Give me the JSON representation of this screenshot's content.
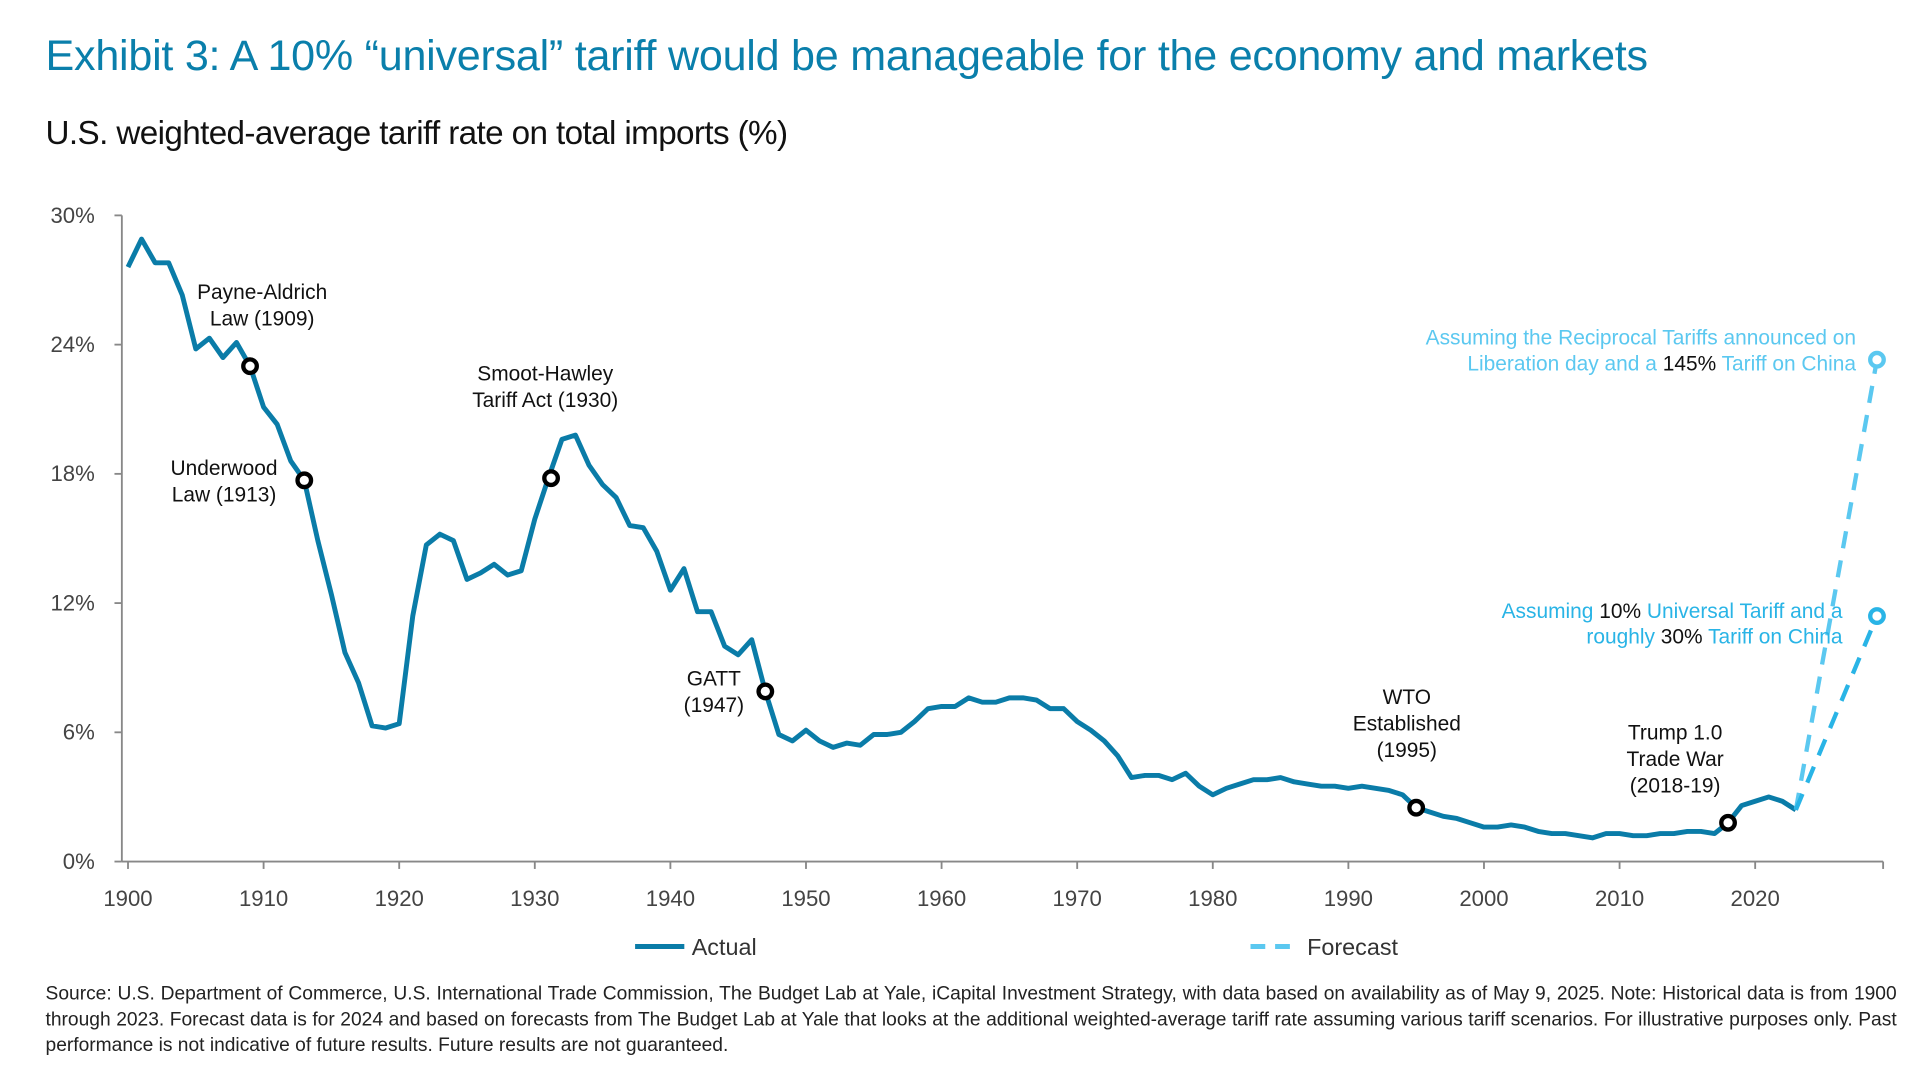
{
  "header": {
    "title": "Exhibit 3: A 10% “universal” tariff would be manageable for the economy and markets",
    "subtitle": "U.S. weighted-average tariff rate on total imports (%)"
  },
  "chart_data": {
    "type": "line",
    "title": "Exhibit 3: A 10% “universal” tariff would be manageable for the economy and markets",
    "ylabel": "U.S. weighted-average tariff rate on total imports (%)",
    "xlabel": "",
    "ylim": [
      0,
      30
    ],
    "y_ticks": [
      "0%",
      "6%",
      "12%",
      "18%",
      "24%",
      "30%"
    ],
    "y_tick_values": [
      0,
      6,
      12,
      18,
      24,
      30
    ],
    "x_ticks": [
      "1900",
      "1910",
      "1920",
      "1930",
      "1940",
      "1950",
      "1960",
      "1970",
      "1980",
      "1990",
      "2000",
      "2010",
      "2020"
    ],
    "grid": false,
    "legend_placement": "bottom",
    "colors": {
      "actual": "#0a7ca8",
      "forecast_high": "#5bc8f0",
      "forecast_low": "#29b4e6",
      "title": "#0a7fab",
      "markers": "#000000"
    },
    "series": [
      {
        "name": "Actual",
        "style": "solid",
        "x": [
          1900,
          1901,
          1902,
          1903,
          1904,
          1905,
          1906,
          1907,
          1908,
          1909,
          1910,
          1911,
          1912,
          1913,
          1914,
          1915,
          1916,
          1917,
          1918,
          1919,
          1920,
          1921,
          1922,
          1923,
          1924,
          1925,
          1926,
          1927,
          1928,
          1929,
          1930,
          1931,
          1932,
          1933,
          1934,
          1935,
          1936,
          1937,
          1938,
          1939,
          1940,
          1941,
          1942,
          1943,
          1944,
          1945,
          1946,
          1947,
          1948,
          1949,
          1950,
          1951,
          1952,
          1953,
          1954,
          1955,
          1956,
          1957,
          1958,
          1959,
          1960,
          1961,
          1962,
          1963,
          1964,
          1965,
          1966,
          1967,
          1968,
          1969,
          1970,
          1971,
          1972,
          1973,
          1974,
          1975,
          1976,
          1977,
          1978,
          1979,
          1980,
          1981,
          1982,
          1983,
          1984,
          1985,
          1986,
          1987,
          1988,
          1989,
          1990,
          1991,
          1992,
          1993,
          1994,
          1995,
          1996,
          1997,
          1998,
          1999,
          2000,
          2001,
          2002,
          2003,
          2004,
          2005,
          2006,
          2007,
          2008,
          2009,
          2010,
          2011,
          2012,
          2013,
          2014,
          2015,
          2016,
          2017,
          2018,
          2019,
          2020,
          2021,
          2022,
          2023
        ],
        "values": [
          27.6,
          28.9,
          27.8,
          27.8,
          26.3,
          23.8,
          24.3,
          23.4,
          24.1,
          23.0,
          21.1,
          20.3,
          18.6,
          17.7,
          14.9,
          12.4,
          9.7,
          8.3,
          6.3,
          6.2,
          6.4,
          11.4,
          14.7,
          15.2,
          14.9,
          13.1,
          13.4,
          13.8,
          13.3,
          13.5,
          15.9,
          17.8,
          19.6,
          19.8,
          18.4,
          17.5,
          16.9,
          15.6,
          15.5,
          14.4,
          12.6,
          13.6,
          11.6,
          11.6,
          10.0,
          9.6,
          10.3,
          7.9,
          5.9,
          5.6,
          6.1,
          5.6,
          5.3,
          5.5,
          5.4,
          5.9,
          5.9,
          6.0,
          6.5,
          7.1,
          7.2,
          7.2,
          7.6,
          7.4,
          7.4,
          7.6,
          7.6,
          7.5,
          7.1,
          7.1,
          6.5,
          6.1,
          5.6,
          4.9,
          3.9,
          4.0,
          4.0,
          3.8,
          4.1,
          3.5,
          3.1,
          3.4,
          3.6,
          3.8,
          3.8,
          3.9,
          3.7,
          3.6,
          3.5,
          3.5,
          3.4,
          3.5,
          3.4,
          3.3,
          3.1,
          2.5,
          2.3,
          2.1,
          2.0,
          1.8,
          1.6,
          1.6,
          1.7,
          1.6,
          1.4,
          1.3,
          1.3,
          1.2,
          1.1,
          1.3,
          1.3,
          1.2,
          1.2,
          1.3,
          1.3,
          1.4,
          1.4,
          1.3,
          1.8,
          2.6,
          2.8,
          3.0,
          2.8,
          2.4
        ]
      },
      {
        "name": "Forecast",
        "style": "dashed",
        "scenarios": [
          {
            "from_year": 2023,
            "from_value": 2.4,
            "year": 2024,
            "value": 23.3,
            "color_key": "forecast_high"
          },
          {
            "from_year": 2023,
            "from_value": 2.4,
            "year": 2024,
            "value": 11.4,
            "color_key": "forecast_low"
          }
        ]
      }
    ],
    "annotations": [
      {
        "lines": [
          "Payne-Aldrich",
          "Law (1909)"
        ],
        "year": 1909,
        "value": 23.0
      },
      {
        "lines": [
          "Underwood",
          "Law (1913)"
        ],
        "year": 1913,
        "value": 17.7
      },
      {
        "lines": [
          "Smoot-Hawley",
          "Tariff Act (1930)"
        ],
        "year": 1931.2,
        "value": 17.8
      },
      {
        "lines": [
          "GATT",
          "(1947)"
        ],
        "year": 1947,
        "value": 7.9
      },
      {
        "lines": [
          "WTO",
          "Established",
          "(1995)"
        ],
        "year": 1995,
        "value": 2.5
      },
      {
        "lines": [
          "Trump 1.0",
          "Trade War",
          "(2018-19)"
        ],
        "year": 2018,
        "value": 1.8
      }
    ],
    "forecast_labels": [
      {
        "line1": "Assuming the Reciprocal Tariffs announced on",
        "line2_a": "Liberation day and a ",
        "line2_b": "145%",
        "line2_c": " Tariff on China"
      },
      {
        "line1_a": "Assuming ",
        "line1_b": "10%",
        "line1_c": " Universal Tariff and a",
        "line2_a": "roughly ",
        "line2_b": "30%",
        "line2_c": " Tariff on China"
      }
    ],
    "legend": [
      "Actual",
      "Forecast"
    ]
  },
  "footer": {
    "source": "Source: U.S. Department of Commerce, U.S. International Trade Commission, The Budget Lab at Yale, iCapital Investment Strategy, with data based on availability as of May 9, 2025. Note: Historical data is from 1900 through 2023. Forecast data is for 2024 and based on forecasts from The Budget Lab at Yale that looks at the additional weighted-average tariff rate assuming various tariff scenarios. For illustrative purposes only. Past performance is not indicative of future results. Future results are not guaranteed."
  }
}
